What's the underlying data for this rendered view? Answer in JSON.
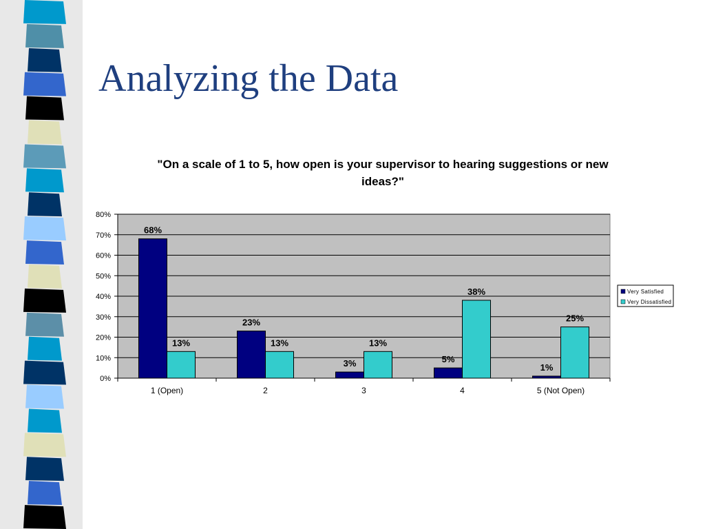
{
  "slide": {
    "title": "Analyzing the Data"
  },
  "decor": {
    "strip_colors": [
      "#0099cc",
      "#4f8fa8",
      "#003366",
      "#3366cc",
      "#000000",
      "#e0e0b8",
      "#5c9bb8",
      "#0099cc",
      "#003366",
      "#99ccff",
      "#3366cc",
      "#e0e0b8",
      "#000000",
      "#5c8fa8",
      "#0099cc",
      "#003366",
      "#99ccff",
      "#0099cc",
      "#e0e0b8",
      "#003366",
      "#3366cc",
      "#000000"
    ]
  },
  "chart_data": {
    "type": "bar",
    "title": "\"On a scale of 1 to 5, how open is your supervisor to hearing suggestions or new ideas?\"",
    "categories": [
      "1 (Open)",
      "2",
      "3",
      "4",
      "5 (Not Open)"
    ],
    "series": [
      {
        "name": "Very Satisfied",
        "color": "#000080",
        "values": [
          68,
          23,
          3,
          5,
          1
        ],
        "labels": [
          "68%",
          "23%",
          "3%",
          "5%",
          "1%"
        ]
      },
      {
        "name": "Very Dissatisfied",
        "color": "#33cccc",
        "values": [
          13,
          13,
          13,
          38,
          25
        ],
        "labels": [
          "13%",
          "13%",
          "13%",
          "38%",
          "25%"
        ]
      }
    ],
    "ylim": [
      0,
      80
    ],
    "yticks": [
      "0%",
      "10%",
      "20%",
      "30%",
      "40%",
      "50%",
      "60%",
      "70%",
      "80%"
    ],
    "ytick_values": [
      0,
      10,
      20,
      30,
      40,
      50,
      60,
      70,
      80
    ],
    "xlabel": "",
    "ylabel": "",
    "grid": true,
    "legend_position": "right",
    "plot_background": "#c0c0c0"
  }
}
